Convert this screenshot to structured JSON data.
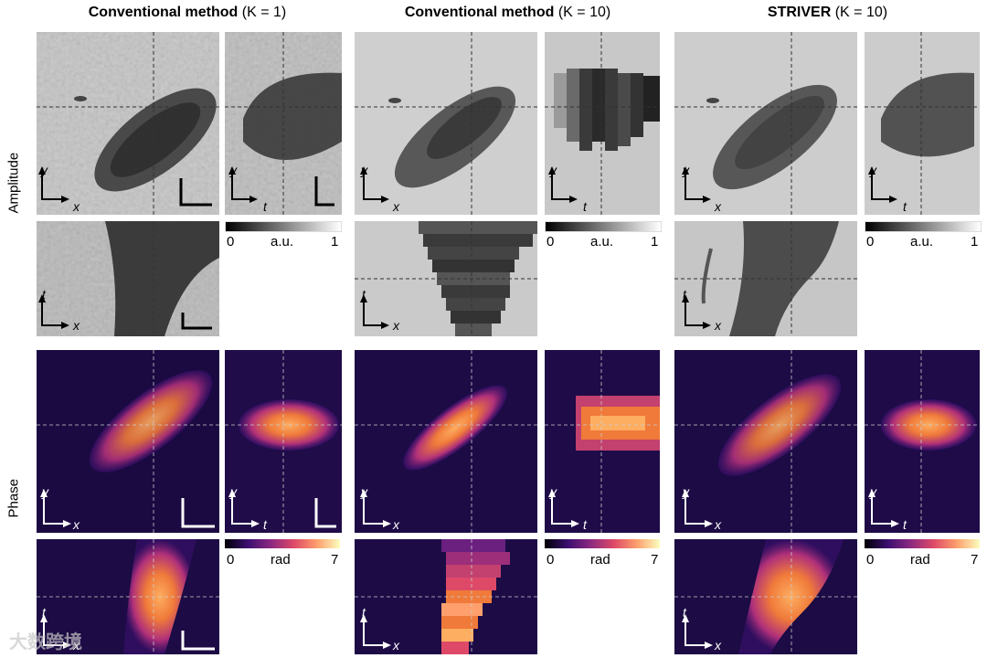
{
  "columns": [
    {
      "name_bold": "Conventional method",
      "k": "(K = 1)"
    },
    {
      "name_bold": "Conventional method",
      "k": "(K = 10)"
    },
    {
      "name_bold": "STRIVER",
      "k": "(K = 10)"
    }
  ],
  "rows": {
    "amplitude": "Amplitude",
    "phase": "Phase"
  },
  "axes": {
    "y": "y",
    "x": "x",
    "t": "t"
  },
  "amplitude_colorbar": {
    "min": "0",
    "unit": "a.u.",
    "max": "1",
    "colors": [
      "#000000",
      "#ffffff"
    ]
  },
  "phase_colorbar": {
    "min": "0",
    "unit": "rad",
    "max": "7",
    "colors": [
      "#000004",
      "#3b0f70",
      "#8c2981",
      "#de4968",
      "#fe9f6d",
      "#fcfdbf"
    ]
  },
  "watermark": "大数跨境"
}
